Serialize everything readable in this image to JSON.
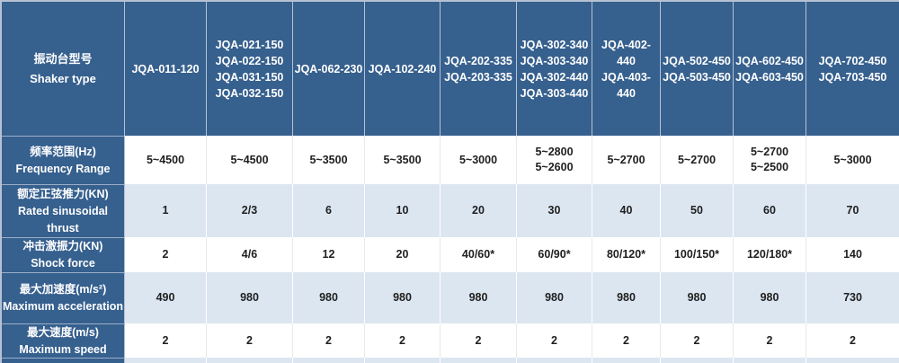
{
  "colors": {
    "header_bg": "#36608e",
    "alt_row_bg": "#dce6f1",
    "row_bg": "#ffffff",
    "header_text": "#ffffff",
    "value_text": "#1f1f1f",
    "outer_border": "#b6c2d4"
  },
  "table": {
    "header": {
      "label_zh": "振动台型号",
      "label_en": "Shaker type",
      "columns": [
        "JQA-011-120",
        "JQA-021-150\nJQA-022-150\nJQA-031-150\nJQA-032-150",
        "JQA-062-230",
        "JQA-102-240",
        "JQA-202-335\nJQA-203-335",
        "JQA-302-340\nJQA-303-340\nJQA-302-440\nJQA-303-440",
        "JQA-402-440\nJQA-403-440",
        "JQA-502-450\nJQA-503-450",
        "JQA-602-450\nJQA-603-450",
        "JQA-702-450\nJQA-703-450"
      ]
    },
    "rows": [
      {
        "label_zh": "频率范围(Hz)",
        "label_en": "Frequency Range",
        "values": [
          "5~4500",
          "5~4500",
          "5~3500",
          "5~3500",
          "5~3000",
          "5~2800\n5~2600",
          "5~2700",
          "5~2700",
          "5~2700\n5~2500",
          "5~3000"
        ]
      },
      {
        "label_zh": "额定正弦推力(KN)",
        "label_en": "Rated sinusoidal thrust",
        "values": [
          "1",
          "2/3",
          "6",
          "10",
          "20",
          "30",
          "40",
          "50",
          "60",
          "70"
        ]
      },
      {
        "label_zh": "冲击激振力(KN)",
        "label_en": "Shock force",
        "values": [
          "2",
          "4/6",
          "12",
          "20",
          "40/60*",
          "60/90*",
          "80/120*",
          "100/150*",
          "120/180*",
          "140"
        ]
      },
      {
        "label_zh": "最大加速度(m/s²)",
        "label_en": "Maximum acceleration",
        "values": [
          "490",
          "980",
          "980",
          "980",
          "980",
          "980",
          "980",
          "980",
          "980",
          "730"
        ]
      },
      {
        "label_zh": "最大速度(m/s)",
        "label_en": "Maximum speed",
        "values": [
          "2",
          "2",
          "2",
          "2",
          "2",
          "2",
          "2",
          "2",
          "2",
          "2"
        ]
      }
    ]
  }
}
